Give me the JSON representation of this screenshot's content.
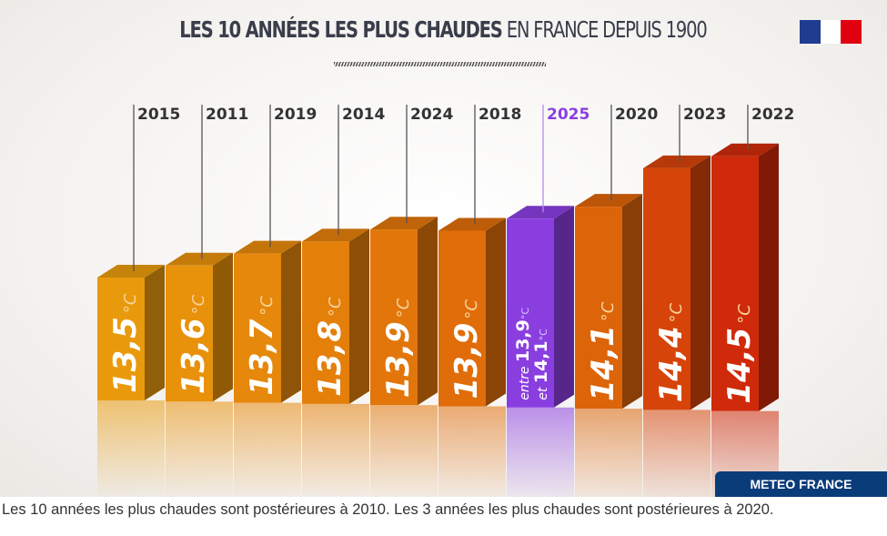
{
  "title": {
    "bold": "LES 10 ANNÉES LES PLUS CHAUDES",
    "regular": "EN FRANCE DEPUIS 1900"
  },
  "brand": "METEO FRANCE",
  "caption": "Les 10 années les plus chaudes sont postérieures à 2010. Les 3 années les plus chaudes sont postérieures à 2020.",
  "colors": {
    "flag_blue": "#1f3c8f",
    "flag_red": "#e1000f",
    "highlight": "#8a3ee0",
    "highlight_label": "#8a3ee0"
  },
  "chart_data": {
    "type": "bar",
    "title": "LES 10 ANNÉES LES PLUS CHAUDES EN FRANCE DEPUIS 1900",
    "unit": "°C",
    "categories": [
      "2015",
      "2011",
      "2019",
      "2014",
      "2024",
      "2018",
      "2025",
      "2020",
      "2023",
      "2022"
    ],
    "values": [
      13.5,
      13.6,
      13.7,
      13.8,
      13.9,
      13.9,
      14.0,
      14.1,
      14.4,
      14.5
    ],
    "value_labels": [
      "13,5",
      "13,6",
      "13,7",
      "13,8",
      "13,9",
      "13,9",
      "",
      "14,1",
      "14,4",
      "14,5"
    ],
    "range_2025": {
      "prefix_low": "entre",
      "low": "13,9",
      "prefix_high": "et",
      "high": "14,1",
      "values": [
        13.9,
        14.1
      ]
    },
    "highlight": "2025",
    "colors": [
      "#e99a0c",
      "#e8910b",
      "#e6880b",
      "#e47f0a",
      "#e2760a",
      "#e06d0a",
      "#8a3ee0",
      "#dc6409",
      "#d6440a",
      "#cf2a0a"
    ]
  }
}
